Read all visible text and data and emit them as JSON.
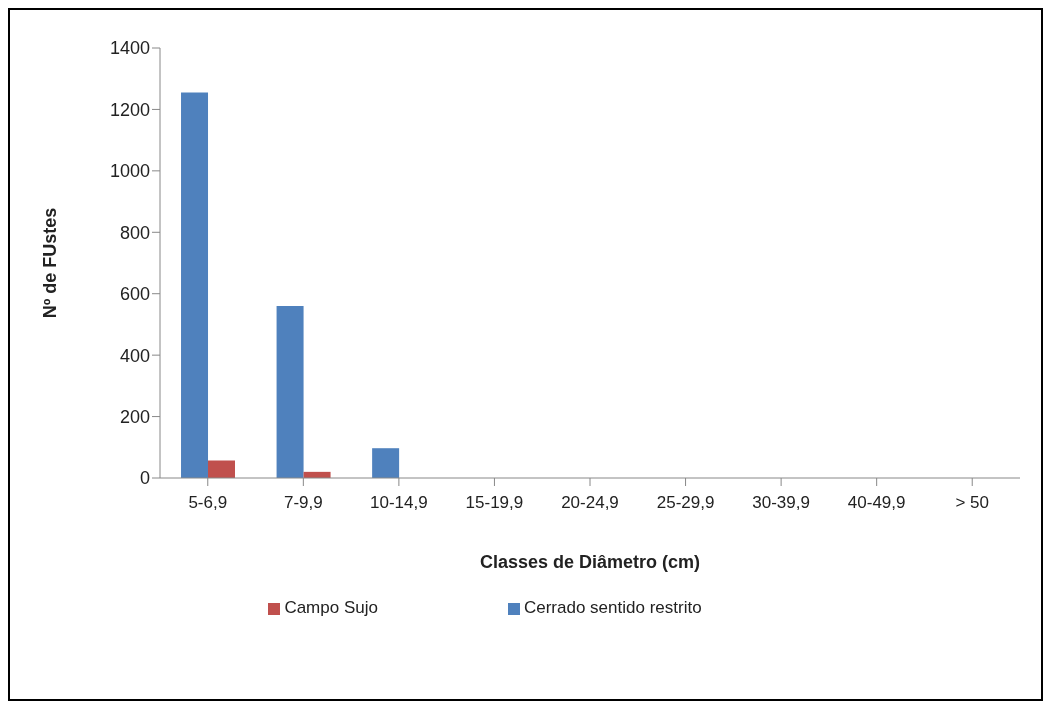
{
  "chart_data": {
    "type": "bar",
    "xlabel": "Classes de Diâmetro (cm)",
    "ylabel": "Nº de FUstes",
    "categories": [
      "5-6,9",
      "7-9,9",
      "10-14,9",
      "15-19,9",
      "20-24,9",
      "25-29,9",
      "30-39,9",
      "40-49,9",
      "> 50"
    ],
    "series": [
      {
        "name": "Cerrado sentido restrito",
        "color": "#4f81bd",
        "values": [
          1255,
          560,
          97,
          0,
          0,
          0,
          0,
          0,
          0
        ]
      },
      {
        "name": "Campo Sujo",
        "color": "#c0504d",
        "values": [
          57,
          20,
          0,
          0,
          0,
          0,
          0,
          0,
          0
        ]
      }
    ],
    "ylim": [
      0,
      1400
    ],
    "yticks": [
      0,
      200,
      400,
      600,
      800,
      1000,
      1200,
      1400
    ],
    "grid": false,
    "legend": "bottom"
  }
}
